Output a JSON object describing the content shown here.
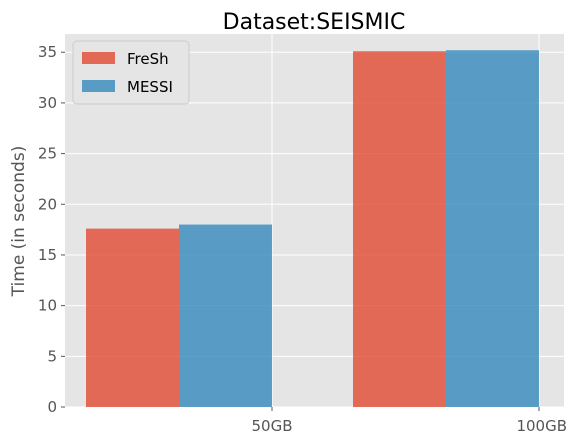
{
  "chart_data": {
    "type": "bar",
    "title": "Dataset:SEISMIC",
    "xlabel": "",
    "ylabel": "Time (in seconds)",
    "categories": [
      "50GB",
      "100GB"
    ],
    "series": [
      {
        "name": "FreSh",
        "values": [
          17.6,
          35.1
        ],
        "color": "#e24a33"
      },
      {
        "name": "MESSI",
        "values": [
          18.0,
          35.2
        ],
        "color": "#348abd"
      }
    ],
    "ylim": [
      0,
      36.8
    ],
    "yticks": [
      0,
      5,
      10,
      15,
      20,
      25,
      30,
      35
    ],
    "grid": true,
    "legend_position": "top-left",
    "background_color": "#e5e5e5",
    "grid_color": "#ffffff",
    "bar_opacity": 0.8
  }
}
